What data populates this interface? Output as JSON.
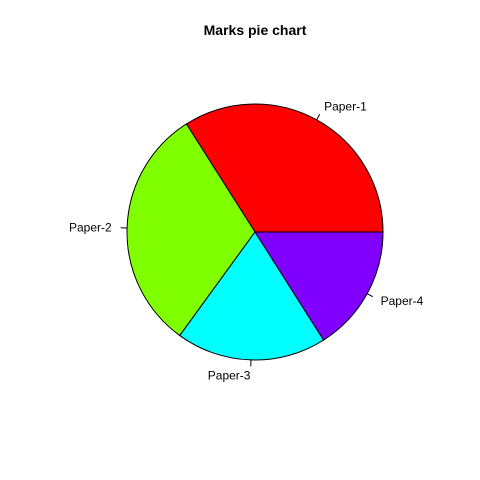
{
  "chart_data": {
    "type": "pie",
    "title": "Marks pie chart",
    "categories": [
      "Paper-1",
      "Paper-2",
      "Paper-3",
      "Paper-4"
    ],
    "values": [
      34,
      31,
      19,
      16
    ],
    "colors": [
      "#FF0000",
      "#80FF00",
      "#00FFFF",
      "#8000FF"
    ],
    "start_angle_deg": 0,
    "direction": "counterclockwise"
  }
}
